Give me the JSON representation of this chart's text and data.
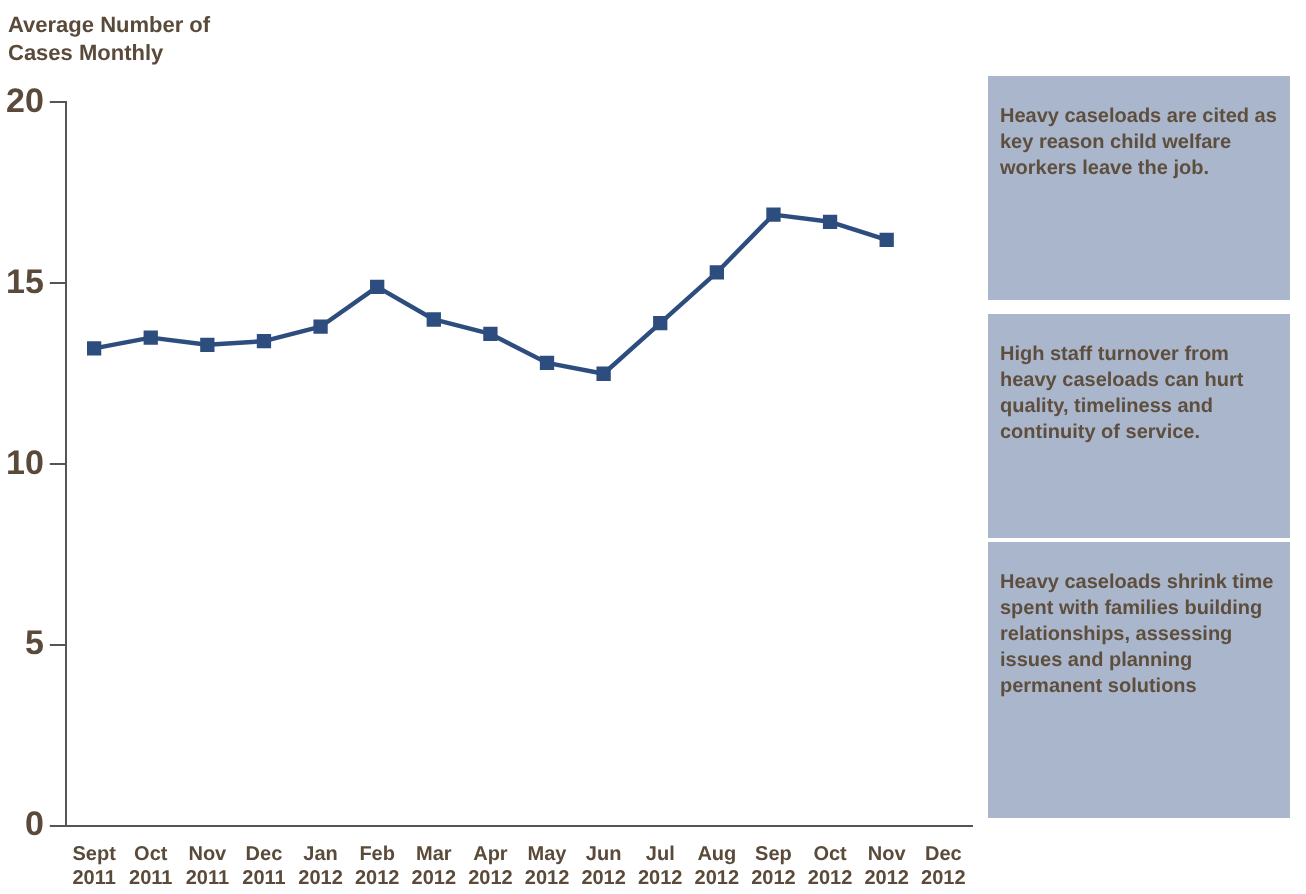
{
  "chart_data": {
    "type": "line",
    "ylabel": "Average Number of Cases Monthly",
    "categories": [
      "Sept 2011",
      "Oct 2011",
      "Nov 2011",
      "Dec 2011",
      "Jan 2012",
      "Feb 2012",
      "Mar 2012",
      "Apr 2012",
      "May 2012",
      "Jun 2012",
      "Jul 2012",
      "Aug 2012",
      "Sep 2012",
      "Oct 2012",
      "Nov 2012",
      "Dec 2012"
    ],
    "series": [
      {
        "color": "#2e4d7f",
        "values": [
          13.2,
          13.5,
          13.3,
          13.4,
          13.8,
          14.9,
          14.0,
          13.6,
          12.8,
          12.5,
          13.9,
          15.3,
          16.9,
          16.7,
          16.2,
          null
        ]
      }
    ],
    "ylim": [
      0,
      20
    ],
    "yticks": [
      0,
      5,
      10,
      15,
      20
    ],
    "grid": false,
    "legend": false,
    "marker": "square",
    "line_style": "solid",
    "annotations": [
      "Heavy caseloads are cited as key reason child welfare workers leave the job.",
      "High staff turnover from heavy caseloads can hurt quality, timeliness and continuity of service.",
      "Heavy caseloads shrink time spent with families building relationships, assessing issues and planning permanent solutions"
    ]
  }
}
